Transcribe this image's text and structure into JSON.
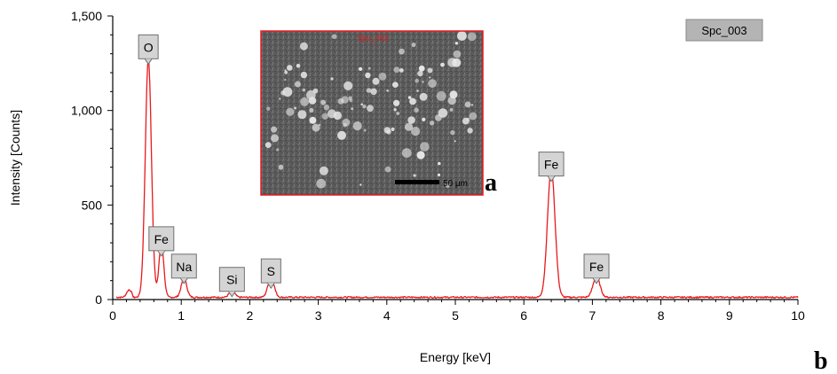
{
  "chart_data": {
    "type": "line",
    "xlabel": "Energy [keV]",
    "ylabel": "Intensity [Counts]",
    "xlim": [
      0,
      10
    ],
    "ylim": [
      0,
      1500
    ],
    "x_ticks": [
      0,
      1,
      2,
      3,
      4,
      5,
      6,
      7,
      8,
      9,
      10
    ],
    "x_tick_labels": [
      "0",
      "1",
      "2",
      "3",
      "4",
      "5",
      "6",
      "7",
      "8",
      "9",
      "10"
    ],
    "y_ticks": [
      0,
      500,
      1000,
      1500
    ],
    "y_tick_labels": [
      "0",
      "500",
      "1,000",
      "1,500"
    ],
    "grid": false,
    "spectrum_label": "Spc_003",
    "line_color": "#e8191c",
    "background_level": 12,
    "peaks": [
      {
        "element": "O",
        "energy": 0.52,
        "intensity": 1260,
        "width": 0.045
      },
      {
        "element": "Fe",
        "energy": 0.71,
        "intensity": 290,
        "width": 0.035
      },
      {
        "element": "Na",
        "energy": 1.04,
        "intensity": 100,
        "width": 0.04
      },
      {
        "element": "Si",
        "energy": 1.74,
        "intensity": 35,
        "width": 0.04
      },
      {
        "element": "S",
        "energy": 2.31,
        "intensity": 105,
        "width": 0.045
      },
      {
        "element": "Fe",
        "energy": 6.4,
        "intensity": 680,
        "width": 0.055
      },
      {
        "element": "Fe",
        "energy": 7.06,
        "intensity": 110,
        "width": 0.05
      }
    ],
    "peak_labels": [
      {
        "text": "O",
        "energy": 0.52,
        "intensity": 1400
      },
      {
        "text": "Fe",
        "energy": 0.71,
        "intensity": 385
      },
      {
        "text": "Na",
        "energy": 1.04,
        "intensity": 240
      },
      {
        "text": "Si",
        "energy": 1.74,
        "intensity": 170
      },
      {
        "text": "S",
        "energy": 2.31,
        "intensity": 215
      },
      {
        "text": "Fe",
        "energy": 6.4,
        "intensity": 780
      },
      {
        "text": "Fe",
        "energy": 7.06,
        "intensity": 240
      }
    ]
  },
  "inset": {
    "image_label": "Spc_003",
    "scale_bar_text": "50 μm",
    "frame_color": "#e8191c"
  },
  "panel_letters": {
    "inset_letter": "a",
    "chart_letter": "b"
  }
}
